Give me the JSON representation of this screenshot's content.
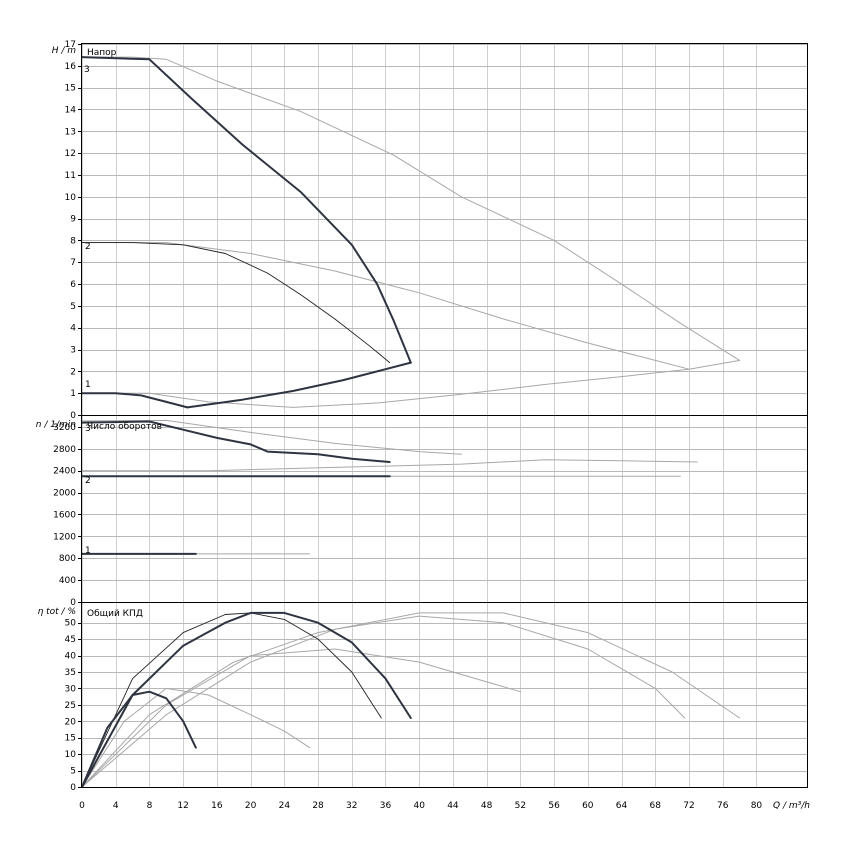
{
  "chart_data": [
    {
      "type": "line",
      "panel": "head",
      "title": "Напор",
      "ylabel": "H / m",
      "xlabel": "Q / m³/h",
      "xlim": [
        0,
        86
      ],
      "ylim": [
        0,
        17
      ],
      "grid": true,
      "x_ticks": [
        0,
        4,
        8,
        12,
        16,
        20,
        24,
        28,
        32,
        36,
        40,
        44,
        48,
        52,
        56,
        60,
        64,
        68,
        72,
        76,
        80
      ],
      "y_ticks": [
        0,
        1,
        2,
        3,
        4,
        5,
        6,
        7,
        8,
        9,
        10,
        11,
        12,
        13,
        14,
        15,
        16,
        17
      ],
      "series": [
        {
          "name": "3",
          "style": "bold",
          "x": [
            0,
            8,
            13,
            19,
            26,
            32,
            35,
            37,
            39
          ],
          "y": [
            16.4,
            16.3,
            14.5,
            12.4,
            10.2,
            7.8,
            6.0,
            4.3,
            2.4
          ]
        },
        {
          "name": "2",
          "style": "thin",
          "x": [
            0,
            6,
            12,
            17,
            22,
            26,
            30,
            34,
            36.5
          ],
          "y": [
            7.9,
            7.9,
            7.8,
            7.4,
            6.5,
            5.5,
            4.4,
            3.2,
            2.4
          ]
        },
        {
          "name": "1",
          "style": "bold",
          "x": [
            0,
            4,
            7,
            10,
            12.5
          ],
          "y": [
            1.0,
            1.0,
            0.9,
            0.6,
            0.35
          ]
        },
        {
          "name": "",
          "style": "bold",
          "x": [
            12.5,
            19,
            25,
            31,
            35,
            39
          ],
          "y": [
            0.35,
            0.7,
            1.1,
            1.6,
            2.0,
            2.4
          ]
        },
        {
          "name": "",
          "style": "light",
          "x": [
            0,
            6,
            10,
            16,
            26,
            37,
            45,
            56,
            64,
            71,
            78
          ],
          "y": [
            16.4,
            16.4,
            16.3,
            15.3,
            13.9,
            11.9,
            10.0,
            8.0,
            6.0,
            4.2,
            2.5
          ]
        },
        {
          "name": "",
          "style": "light",
          "x": [
            0,
            10,
            20,
            30,
            40,
            50,
            60,
            68,
            72
          ],
          "y": [
            7.9,
            7.9,
            7.4,
            6.6,
            5.6,
            4.4,
            3.3,
            2.5,
            2.1
          ]
        },
        {
          "name": "",
          "style": "light",
          "x": [
            0,
            8,
            15,
            25,
            35,
            45,
            55,
            65,
            72,
            78
          ],
          "y": [
            1.0,
            1.0,
            0.6,
            0.35,
            0.55,
            0.95,
            1.4,
            1.8,
            2.1,
            2.5
          ]
        }
      ]
    },
    {
      "type": "line",
      "panel": "speed",
      "title": "Число оборотов",
      "ylabel": "n / 1/min",
      "xlim": [
        0,
        86
      ],
      "ylim": [
        0,
        3400
      ],
      "grid": true,
      "y_ticks": [
        0,
        400,
        800,
        1200,
        1600,
        2000,
        2400,
        2800,
        3200
      ],
      "series": [
        {
          "name": "3",
          "style": "bold",
          "x": [
            0,
            8,
            12,
            16,
            20,
            22,
            28,
            32,
            36.5
          ],
          "y": [
            3280,
            3300,
            3150,
            3000,
            2880,
            2750,
            2700,
            2620,
            2560
          ]
        },
        {
          "name": "2",
          "style": "bold",
          "x": [
            0,
            36.5
          ],
          "y": [
            2300,
            2300
          ]
        },
        {
          "name": "1",
          "style": "bold",
          "x": [
            0,
            13.5
          ],
          "y": [
            880,
            880
          ]
        },
        {
          "name": "",
          "style": "light",
          "x": [
            0,
            10,
            20,
            30,
            40,
            45
          ],
          "y": [
            3310,
            3320,
            3100,
            2900,
            2750,
            2700
          ]
        },
        {
          "name": "",
          "style": "light",
          "x": [
            0,
            15,
            30,
            45,
            55,
            65,
            73
          ],
          "y": [
            2400,
            2400,
            2460,
            2520,
            2600,
            2580,
            2560
          ]
        },
        {
          "name": "",
          "style": "light",
          "x": [
            0,
            20,
            40,
            60,
            71
          ],
          "y": [
            2300,
            2300,
            2300,
            2300,
            2300
          ]
        },
        {
          "name": "",
          "style": "light",
          "x": [
            0,
            10,
            20,
            27
          ],
          "y": [
            880,
            880,
            880,
            880
          ]
        }
      ]
    },
    {
      "type": "line",
      "panel": "efficiency",
      "title": "Общий КПД",
      "ylabel": "η tot / %",
      "xlabel": "Q / m³/h",
      "xlim": [
        0,
        86
      ],
      "ylim": [
        0,
        56
      ],
      "grid": true,
      "y_ticks": [
        0,
        5,
        10,
        15,
        20,
        25,
        30,
        35,
        40,
        45,
        50
      ],
      "series": [
        {
          "name": "3",
          "style": "bold",
          "x": [
            0,
            6,
            12,
            17,
            20,
            24,
            28,
            32,
            36,
            39
          ],
          "y": [
            0,
            28,
            43,
            50,
            53,
            53,
            50,
            44,
            33,
            21
          ]
        },
        {
          "name": "2",
          "style": "thin",
          "x": [
            0,
            6,
            12,
            17,
            20,
            24,
            28,
            32,
            35.5
          ],
          "y": [
            0,
            33,
            47,
            52.5,
            53,
            51,
            45,
            35,
            21
          ]
        },
        {
          "name": "1",
          "style": "bold",
          "x": [
            0,
            3,
            6,
            8,
            10,
            12,
            13.5
          ],
          "y": [
            0,
            18,
            28,
            29,
            27,
            20,
            12
          ]
        },
        {
          "name": "",
          "style": "light",
          "x": [
            0,
            8,
            18,
            28,
            40,
            50,
            60,
            70,
            78
          ],
          "y": [
            0,
            22,
            38,
            47,
            53,
            53,
            47,
            35,
            21
          ]
        },
        {
          "name": "",
          "style": "light",
          "x": [
            0,
            10,
            20,
            30,
            40,
            50,
            60,
            68,
            71.5
          ],
          "y": [
            0,
            22,
            38,
            48,
            52,
            50,
            42,
            30,
            21
          ]
        },
        {
          "name": "",
          "style": "light",
          "x": [
            0,
            5,
            10,
            15,
            20,
            24,
            27
          ],
          "y": [
            0,
            20,
            30,
            28,
            22,
            17,
            12
          ]
        },
        {
          "name": "",
          "style": "light",
          "x": [
            0,
            10,
            20,
            30,
            40,
            48,
            52
          ],
          "y": [
            0,
            25,
            40,
            42,
            38,
            32,
            29
          ]
        }
      ]
    }
  ],
  "labels": {
    "head_title": "Напор",
    "head_ylabel": "H / m",
    "speed_title": "Число оборотов",
    "speed_ylabel": "n / 1/min",
    "eff_title": "Общий КПД",
    "eff_ylabel": "η tot / %",
    "xlabel": "Q / m³/h",
    "curve_1": "1",
    "curve_2": "2",
    "curve_3": "3"
  }
}
